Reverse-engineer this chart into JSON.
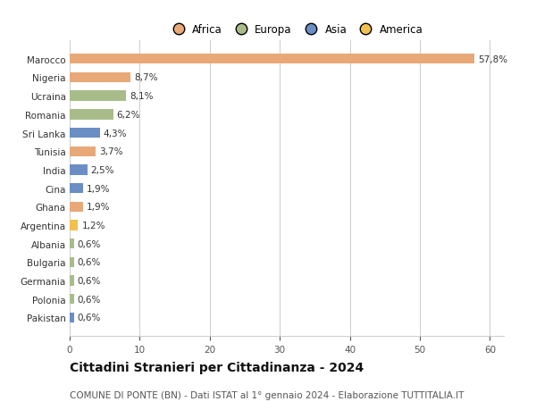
{
  "countries": [
    "Pakistan",
    "Polonia",
    "Germania",
    "Bulgaria",
    "Albania",
    "Argentina",
    "Ghana",
    "Cina",
    "India",
    "Tunisia",
    "Sri Lanka",
    "Romania",
    "Ucraina",
    "Nigeria",
    "Marocco"
  ],
  "values": [
    0.6,
    0.6,
    0.6,
    0.6,
    0.6,
    1.2,
    1.9,
    1.9,
    2.5,
    3.7,
    4.3,
    6.2,
    8.1,
    8.7,
    57.8
  ],
  "labels": [
    "0,6%",
    "0,6%",
    "0,6%",
    "0,6%",
    "0,6%",
    "1,2%",
    "1,9%",
    "1,9%",
    "2,5%",
    "3,7%",
    "4,3%",
    "6,2%",
    "8,1%",
    "8,7%",
    "57,8%"
  ],
  "colors": [
    "#6b8ec4",
    "#a8bc8a",
    "#a8bc8a",
    "#a8bc8a",
    "#a8bc8a",
    "#f0c050",
    "#e8a878",
    "#6b8ec4",
    "#6b8ec4",
    "#e8a878",
    "#6b8ec4",
    "#a8bc8a",
    "#a8bc8a",
    "#e8a878",
    "#e8a878"
  ],
  "legend": [
    {
      "label": "Africa",
      "color": "#e8a878"
    },
    {
      "label": "Europa",
      "color": "#a8bc8a"
    },
    {
      "label": "Asia",
      "color": "#6b8ec4"
    },
    {
      "label": "America",
      "color": "#f0c050"
    }
  ],
  "xlim": [
    0,
    62
  ],
  "xticks": [
    0,
    10,
    20,
    30,
    40,
    50,
    60
  ],
  "title": "Cittadini Stranieri per Cittadinanza - 2024",
  "subtitle": "COMUNE DI PONTE (BN) - Dati ISTAT al 1° gennaio 2024 - Elaborazione TUTTITALIA.IT",
  "bg_color": "#ffffff",
  "bar_height": 0.55,
  "label_fontsize": 7.5,
  "tick_fontsize": 7.5,
  "title_fontsize": 10,
  "subtitle_fontsize": 7.5
}
